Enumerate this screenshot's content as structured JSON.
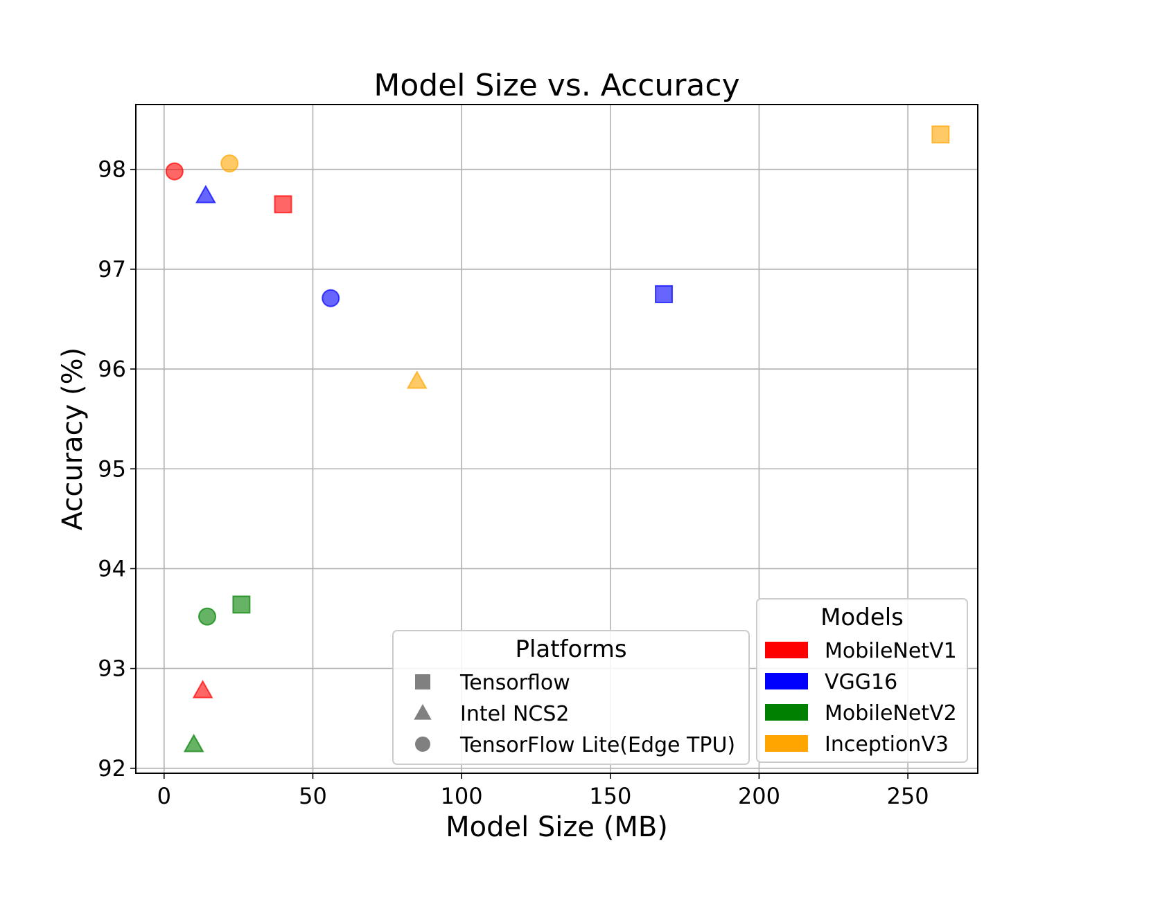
{
  "chart_data": {
    "type": "scatter",
    "title": "Model Size vs. Accuracy",
    "xlabel": "Model Size (MB)",
    "ylabel": "Accuracy (%)",
    "xlim": [
      -9.5,
      273.5
    ],
    "ylim": [
      91.95,
      98.65
    ],
    "x_ticks": [
      0,
      50,
      100,
      150,
      200,
      250
    ],
    "y_ticks": [
      92,
      93,
      94,
      95,
      96,
      97,
      98
    ],
    "grid": true,
    "colors": {
      "MobileNetV1": "#ff0000",
      "VGG16": "#0000ff",
      "MobileNetV2": "#008000",
      "InceptionV3": "#ffa500"
    },
    "legend_platforms": {
      "title": "Platforms",
      "placement": "lower-center-right",
      "entries": [
        {
          "label": "Tensorflow",
          "marker": "square"
        },
        {
          "label": "Intel NCS2",
          "marker": "triangle"
        },
        {
          "label": "TensorFlow Lite(Edge TPU)",
          "marker": "circle"
        }
      ]
    },
    "legend_models": {
      "title": "Models",
      "placement": "lower-right",
      "entries": [
        "MobileNetV1",
        "VGG16",
        "MobileNetV2",
        "InceptionV3"
      ]
    },
    "points": [
      {
        "model": "MobileNetV1",
        "platform": "Tensorflow",
        "marker": "square",
        "x": 40,
        "y": 97.65
      },
      {
        "model": "MobileNetV1",
        "platform": "Intel NCS2",
        "marker": "triangle",
        "x": 13,
        "y": 92.78
      },
      {
        "model": "MobileNetV1",
        "platform": "TensorFlow Lite(Edge TPU)",
        "marker": "circle",
        "x": 3.5,
        "y": 97.98
      },
      {
        "model": "VGG16",
        "platform": "Tensorflow",
        "marker": "square",
        "x": 168,
        "y": 96.75
      },
      {
        "model": "VGG16",
        "platform": "Intel NCS2",
        "marker": "triangle",
        "x": 14,
        "y": 97.74
      },
      {
        "model": "VGG16",
        "platform": "TensorFlow Lite(Edge TPU)",
        "marker": "circle",
        "x": 56,
        "y": 96.71
      },
      {
        "model": "MobileNetV2",
        "platform": "Tensorflow",
        "marker": "square",
        "x": 26,
        "y": 93.64
      },
      {
        "model": "MobileNetV2",
        "platform": "Intel NCS2",
        "marker": "triangle",
        "x": 10,
        "y": 92.24
      },
      {
        "model": "MobileNetV2",
        "platform": "TensorFlow Lite(Edge TPU)",
        "marker": "circle",
        "x": 14.5,
        "y": 93.52
      },
      {
        "model": "InceptionV3",
        "platform": "Tensorflow",
        "marker": "square",
        "x": 261,
        "y": 98.35
      },
      {
        "model": "InceptionV3",
        "platform": "Intel NCS2",
        "marker": "triangle",
        "x": 85,
        "y": 95.88
      },
      {
        "model": "InceptionV3",
        "platform": "TensorFlow Lite(Edge TPU)",
        "marker": "circle",
        "x": 22,
        "y": 98.06
      }
    ]
  }
}
